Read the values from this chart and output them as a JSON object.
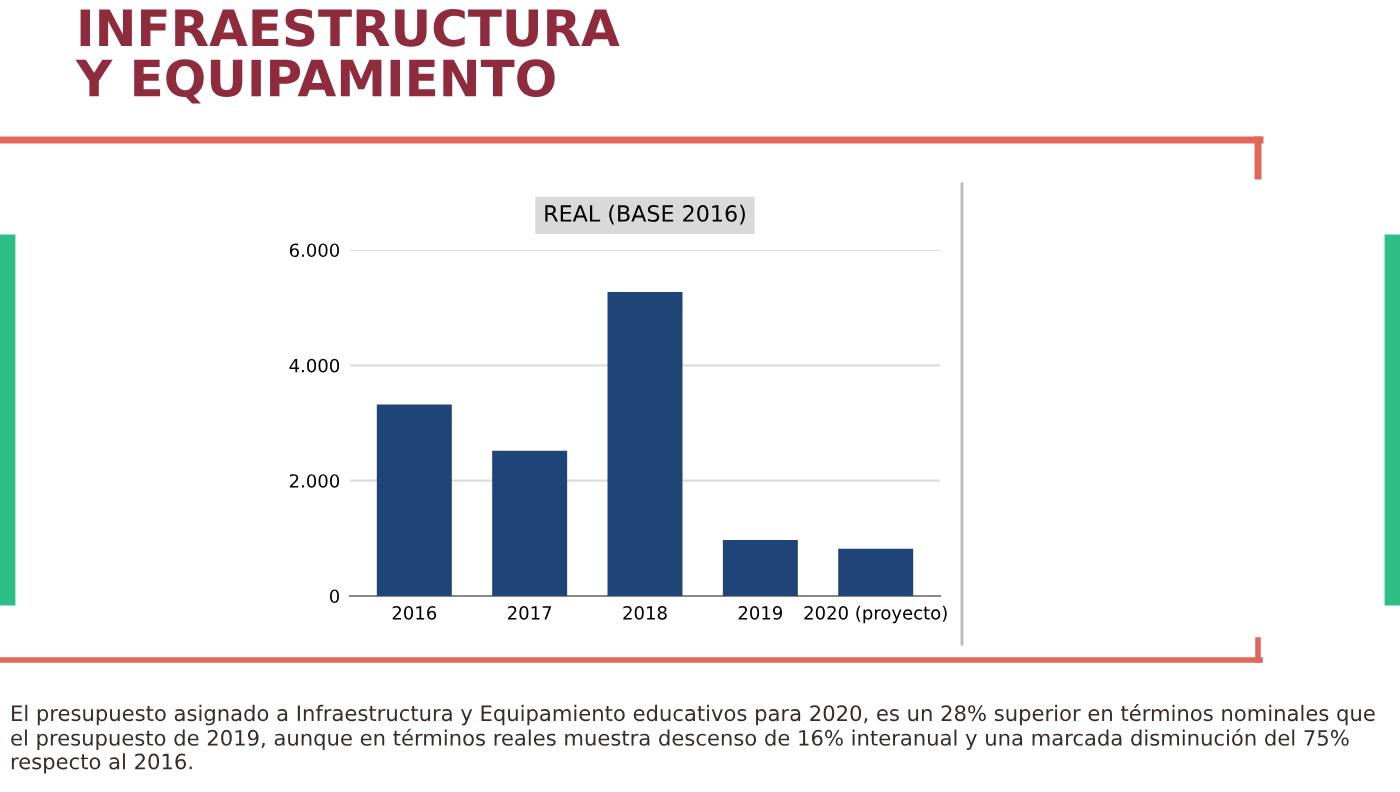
{
  "chart_data": {
    "type": "bar",
    "title": "INFRAESTRUCTURA\nY EQUIPAMIENTO",
    "subtitle": "REAL (BASE 2016)",
    "categories": [
      "2016",
      "2017",
      "2018",
      "2019",
      "2020 (proyecto)"
    ],
    "values": [
      3320,
      2520,
      5270,
      970,
      820
    ],
    "color": "#1f4477",
    "ylim": [
      0,
      6000
    ],
    "yticks": [
      {
        "value": 0,
        "label": "0"
      },
      {
        "value": 2000,
        "label": "2.000"
      },
      {
        "value": 4000,
        "label": "4.000"
      },
      {
        "value": 6000,
        "label": "6.000"
      }
    ],
    "grid": "y",
    "annotations": [
      "El presupuesto asignado a Infraestructura y Equipamiento educativos para 2020, es un 28% superior en términos nominales que el presupuesto de 2019, aunque en términos reales muestra descenso de 16% interanual y una marcada disminución del 75% respecto al 2016."
    ]
  }
}
